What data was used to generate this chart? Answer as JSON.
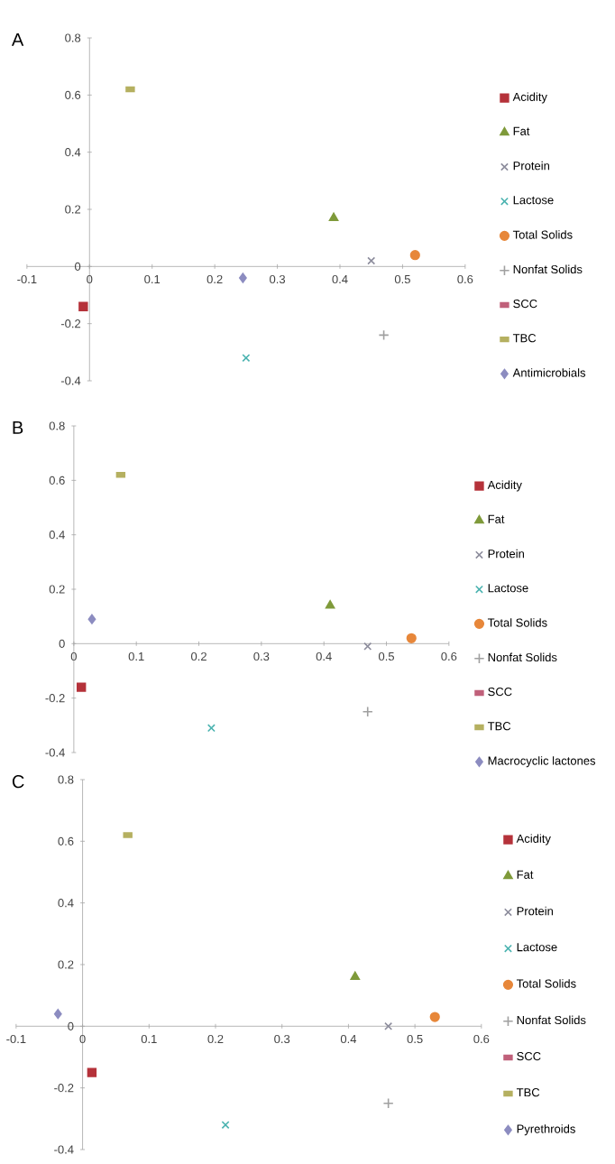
{
  "chart_data": [
    {
      "type": "scatter",
      "title": "A",
      "xlim": [
        -0.1,
        0.6
      ],
      "ylim": [
        -0.4,
        0.8
      ],
      "xticks": [
        -0.1,
        0,
        0.1,
        0.2,
        0.3,
        0.4,
        0.5,
        0.6
      ],
      "yticks": [
        -0.4,
        -0.2,
        0,
        0.2,
        0.4,
        0.6,
        0.8
      ],
      "legend": "right",
      "grid": false,
      "series": [
        {
          "name": "Acidity",
          "color": "#b5323a",
          "marker": "square",
          "x": [
            -0.01
          ],
          "values": [
            -0.14
          ]
        },
        {
          "name": "Fat",
          "color": "#7f9a3a",
          "marker": "triangle",
          "x": [
            0.39
          ],
          "values": [
            0.17
          ]
        },
        {
          "name": "Protein",
          "color": "#8c8c9c",
          "marker": "cross",
          "x": [
            0.45
          ],
          "values": [
            0.02
          ]
        },
        {
          "name": "Lactose",
          "color": "#4bb3b0",
          "marker": "cross",
          "x": [
            0.25
          ],
          "values": [
            -0.32
          ]
        },
        {
          "name": "Total Solids",
          "color": "#e7873a",
          "marker": "circle",
          "x": [
            0.52
          ],
          "values": [
            0.04
          ]
        },
        {
          "name": "Nonfat Solids",
          "color": "#a0a0a0",
          "marker": "plus",
          "x": [
            0.47
          ],
          "values": [
            -0.24
          ]
        },
        {
          "name": "SCC",
          "color": "#c0607a",
          "x": [
            null
          ],
          "values": [
            null
          ]
        },
        {
          "name": "TBC",
          "color": "#b5b060",
          "x": [
            0.065
          ],
          "values": [
            0.62
          ]
        },
        {
          "name": "Antimicrobials",
          "color": "#8c8cc0",
          "marker": "diamond",
          "x": [
            0.245
          ],
          "values": [
            -0.04
          ]
        }
      ]
    },
    {
      "type": "scatter",
      "title": "B",
      "xlim": [
        0,
        0.6
      ],
      "ylim": [
        -0.4,
        0.8
      ],
      "xticks": [
        0,
        0.1,
        0.2,
        0.3,
        0.4,
        0.5,
        0.6
      ],
      "yticks": [
        -0.4,
        -0.2,
        0,
        0.2,
        0.4,
        0.6,
        0.8
      ],
      "legend": "right",
      "grid": false,
      "series": [
        {
          "name": "Acidity",
          "color": "#b5323a",
          "marker": "square",
          "x": [
            0.012
          ],
          "values": [
            -0.16
          ]
        },
        {
          "name": "Fat",
          "color": "#7f9a3a",
          "marker": "triangle",
          "x": [
            0.41
          ],
          "values": [
            0.14
          ]
        },
        {
          "name": "Protein",
          "color": "#8c8c9c",
          "marker": "cross",
          "x": [
            0.47
          ],
          "values": [
            -0.01
          ]
        },
        {
          "name": "Lactose",
          "color": "#4bb3b0",
          "marker": "cross",
          "x": [
            0.22
          ],
          "values": [
            -0.31
          ]
        },
        {
          "name": "Total Solids",
          "color": "#e7873a",
          "marker": "circle",
          "x": [
            0.54
          ],
          "values": [
            0.02
          ]
        },
        {
          "name": "Nonfat Solids",
          "color": "#a0a0a0",
          "marker": "plus",
          "x": [
            0.47
          ],
          "values": [
            -0.25
          ]
        },
        {
          "name": "SCC",
          "color": "#c0607a",
          "x": [
            null
          ],
          "values": [
            null
          ]
        },
        {
          "name": "TBC",
          "color": "#b5b060",
          "x": [
            0.075
          ],
          "values": [
            0.62
          ]
        },
        {
          "name": "Macrocyclic lactones",
          "color": "#8c8cc0",
          "marker": "diamond",
          "x": [
            0.029
          ],
          "values": [
            0.09
          ]
        }
      ]
    },
    {
      "type": "scatter",
      "title": "C",
      "xlim": [
        -0.1,
        0.6
      ],
      "ylim": [
        -0.4,
        0.8
      ],
      "xticks": [
        -0.1,
        0,
        0.1,
        0.2,
        0.3,
        0.4,
        0.5,
        0.6
      ],
      "yticks": [
        -0.4,
        -0.2,
        0,
        0.2,
        0.4,
        0.6,
        0.8
      ],
      "legend": "right",
      "grid": false,
      "series": [
        {
          "name": "Acidity",
          "color": "#b5323a",
          "marker": "square",
          "x": [
            0.014
          ],
          "values": [
            -0.15
          ]
        },
        {
          "name": "Fat",
          "color": "#7f9a3a",
          "marker": "triangle",
          "x": [
            0.41
          ],
          "values": [
            0.16
          ]
        },
        {
          "name": "Protein",
          "color": "#8c8c9c",
          "marker": "cross",
          "x": [
            0.46
          ],
          "values": [
            0.0
          ]
        },
        {
          "name": "Lactose",
          "color": "#4bb3b0",
          "marker": "cross",
          "x": [
            0.215
          ],
          "values": [
            -0.32
          ]
        },
        {
          "name": "Total Solids",
          "color": "#e7873a",
          "marker": "circle",
          "x": [
            0.53
          ],
          "values": [
            0.03
          ]
        },
        {
          "name": "Nonfat Solids",
          "color": "#a0a0a0",
          "marker": "plus",
          "x": [
            0.46
          ],
          "values": [
            -0.25
          ]
        },
        {
          "name": "SCC",
          "color": "#c0607a",
          "x": [
            null
          ],
          "values": [
            null
          ]
        },
        {
          "name": "TBC",
          "color": "#b5b060",
          "x": [
            0.068
          ],
          "values": [
            0.62
          ]
        },
        {
          "name": "Pyrethroids",
          "color": "#8c8cc0",
          "marker": "diamond",
          "x": [
            -0.037
          ],
          "values": [
            0.04
          ]
        }
      ]
    }
  ]
}
